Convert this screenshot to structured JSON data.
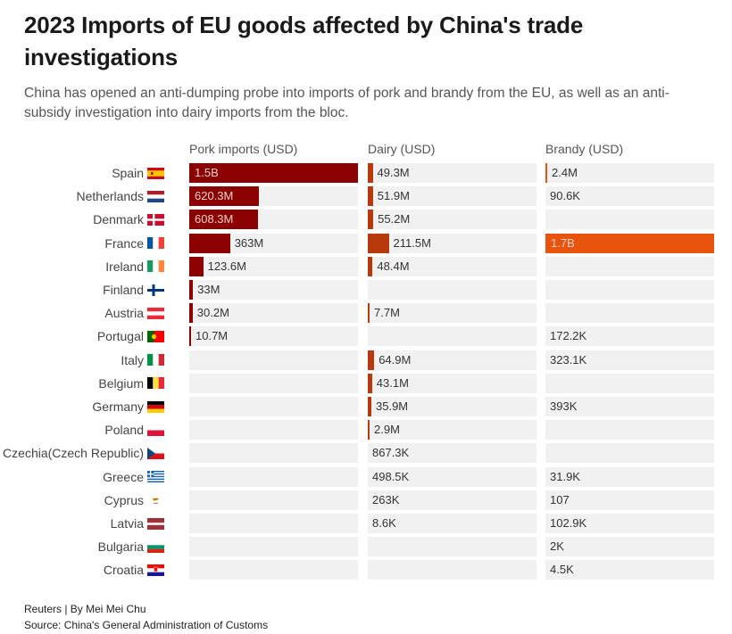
{
  "title": "2023 Imports of EU goods affected by China's trade investigations",
  "subtitle": "China has opened an anti-dumping probe into imports of pork and brandy from the EU, as well as an anti-subsidy investigation into dairy imports from the bloc.",
  "footer": {
    "credit": "Reuters | By Mei Mei Chu",
    "source": "Source: China's General Administration of Customs"
  },
  "colors": {
    "pork": "#8b0000",
    "dairy": "#b83a0c",
    "brandy": "#e8530e",
    "cell_bg": "#f1f1f1"
  },
  "chart_data": {
    "type": "bar",
    "columns": [
      {
        "key": "pork",
        "label": "Pork imports (USD)"
      },
      {
        "key": "dairy",
        "label": "Dairy (USD)"
      },
      {
        "key": "brandy",
        "label": "Brandy (USD)"
      }
    ],
    "rows": [
      {
        "country": "Spain",
        "flag": "spain-flag-icon",
        "pork": {
          "value": 1500000000,
          "label": "1.5B"
        },
        "dairy": {
          "value": 49300000,
          "label": "49.3M"
        },
        "brandy": {
          "value": 2400000,
          "label": "2.4M"
        }
      },
      {
        "country": "Netherlands",
        "flag": "netherlands-flag-icon",
        "pork": {
          "value": 620300000,
          "label": "620.3M"
        },
        "dairy": {
          "value": 51900000,
          "label": "51.9M"
        },
        "brandy": {
          "value": 90600,
          "label": "90.6K"
        }
      },
      {
        "country": "Denmark",
        "flag": "denmark-flag-icon",
        "pork": {
          "value": 608300000,
          "label": "608.3M"
        },
        "dairy": {
          "value": 55200000,
          "label": "55.2M"
        },
        "brandy": null
      },
      {
        "country": "France",
        "flag": "france-flag-icon",
        "pork": {
          "value": 363000000,
          "label": "363M"
        },
        "dairy": {
          "value": 211500000,
          "label": "211.5M"
        },
        "brandy": {
          "value": 1700000000,
          "label": "1.7B"
        }
      },
      {
        "country": "Ireland",
        "flag": "ireland-flag-icon",
        "pork": {
          "value": 123600000,
          "label": "123.6M"
        },
        "dairy": {
          "value": 48400000,
          "label": "48.4M"
        },
        "brandy": null
      },
      {
        "country": "Finland",
        "flag": "finland-flag-icon",
        "pork": {
          "value": 33000000,
          "label": "33M"
        },
        "dairy": null,
        "brandy": null
      },
      {
        "country": "Austria",
        "flag": "austria-flag-icon",
        "pork": {
          "value": 30200000,
          "label": "30.2M"
        },
        "dairy": {
          "value": 7700000,
          "label": "7.7M"
        },
        "brandy": null
      },
      {
        "country": "Portugal",
        "flag": "portugal-flag-icon",
        "pork": {
          "value": 10700000,
          "label": "10.7M"
        },
        "dairy": null,
        "brandy": {
          "value": 172200,
          "label": "172.2K"
        }
      },
      {
        "country": "Italy",
        "flag": "italy-flag-icon",
        "pork": null,
        "dairy": {
          "value": 64900000,
          "label": "64.9M"
        },
        "brandy": {
          "value": 323100,
          "label": "323.1K"
        }
      },
      {
        "country": "Belgium",
        "flag": "belgium-flag-icon",
        "pork": null,
        "dairy": {
          "value": 43100000,
          "label": "43.1M"
        },
        "brandy": null
      },
      {
        "country": "Germany",
        "flag": "germany-flag-icon",
        "pork": null,
        "dairy": {
          "value": 35900000,
          "label": "35.9M"
        },
        "brandy": {
          "value": 393000,
          "label": "393K"
        }
      },
      {
        "country": "Poland",
        "flag": "poland-flag-icon",
        "pork": null,
        "dairy": {
          "value": 2900000,
          "label": "2.9M"
        },
        "brandy": null
      },
      {
        "country": "Czechia(Czech Republic)",
        "flag": "czechia-flag-icon",
        "pork": null,
        "dairy": {
          "value": 867300,
          "label": "867.3K"
        },
        "brandy": null
      },
      {
        "country": "Greece",
        "flag": "greece-flag-icon",
        "pork": null,
        "dairy": {
          "value": 498500,
          "label": "498.5K"
        },
        "brandy": {
          "value": 31900,
          "label": "31.9K"
        }
      },
      {
        "country": "Cyprus",
        "flag": "cyprus-flag-icon",
        "pork": null,
        "dairy": {
          "value": 263000,
          "label": "263K"
        },
        "brandy": {
          "value": 107,
          "label": "107"
        }
      },
      {
        "country": "Latvia",
        "flag": "latvia-flag-icon",
        "pork": null,
        "dairy": {
          "value": 8600,
          "label": "8.6K"
        },
        "brandy": {
          "value": 102900,
          "label": "102.9K"
        }
      },
      {
        "country": "Bulgaria",
        "flag": "bulgaria-flag-icon",
        "pork": null,
        "dairy": null,
        "brandy": {
          "value": 2000,
          "label": "2K"
        }
      },
      {
        "country": "Croatia",
        "flag": "croatia-flag-icon",
        "pork": null,
        "dairy": null,
        "brandy": {
          "value": 4500,
          "label": "4.5K"
        }
      }
    ],
    "scale_max": {
      "pork": 1500000000,
      "dairy": 1700000000,
      "brandy": 1700000000
    }
  }
}
